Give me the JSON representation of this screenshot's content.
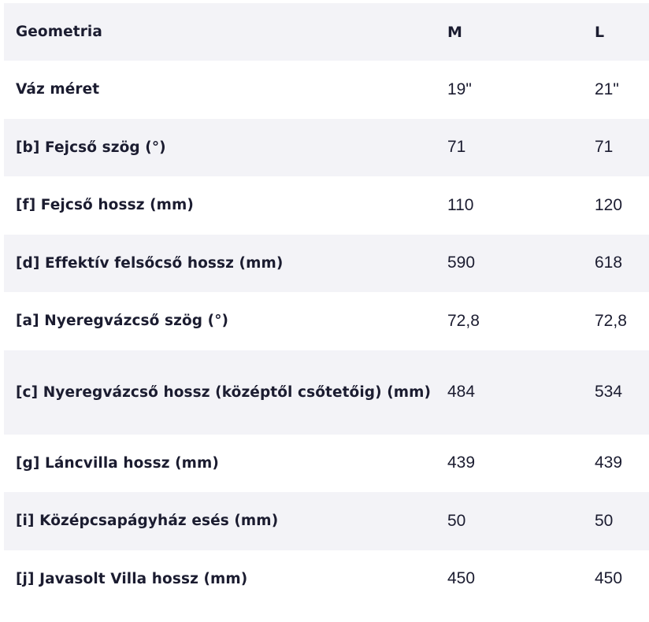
{
  "header": {
    "label": "Geometria",
    "sizes": [
      "M",
      "L"
    ]
  },
  "rows": [
    {
      "label": "Váz méret",
      "m": "19\"",
      "l": "21\""
    },
    {
      "label": "[b] Fejcső szög (°)",
      "m": "71",
      "l": "71"
    },
    {
      "label": "[f] Fejcső hossz (mm)",
      "m": "110",
      "l": "120"
    },
    {
      "label": "[d] Effektív felsőcső hossz (mm)",
      "m": "590",
      "l": "618"
    },
    {
      "label": "[a] Nyeregvázcső szög (°)",
      "m": "72,8",
      "l": "72,8"
    },
    {
      "label": "[c] Nyeregvázcső hossz (középtől csőtetőig) (mm)",
      "m": "484",
      "l": "534"
    },
    {
      "label": "[g] Láncvilla hossz (mm)",
      "m": "439",
      "l": "439"
    },
    {
      "label": "[i] Középcsapágyház esés (mm)",
      "m": "50",
      "l": "50"
    },
    {
      "label": "[j] Javasolt Villa hossz (mm)",
      "m": "450",
      "l": "450"
    }
  ]
}
